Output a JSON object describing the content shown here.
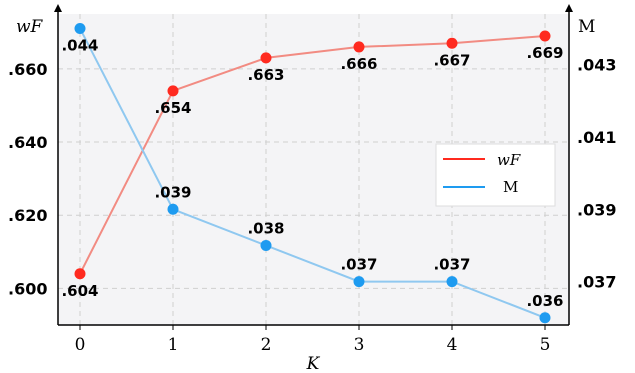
{
  "chart_data": {
    "type": "line",
    "xlabel": "K",
    "x": [
      0,
      1,
      2,
      3,
      4,
      5
    ],
    "x_tick_labels": [
      "0",
      "1",
      "2",
      "3",
      "4",
      "5"
    ],
    "left_axis": {
      "label": "wF",
      "ylim": [
        0.59,
        0.675
      ],
      "ticks": [
        0.6,
        0.62,
        0.64,
        0.66
      ],
      "tick_labels": [
        ".600",
        ".620",
        ".640",
        ".660"
      ]
    },
    "right_axis": {
      "label": "M",
      "ylim": [
        0.0358,
        0.0444
      ],
      "ticks": [
        0.037,
        0.039,
        0.041,
        0.043
      ],
      "tick_labels": [
        ".037",
        ".039",
        ".041",
        ".043"
      ]
    },
    "series": [
      {
        "name": "wF",
        "axis": "left",
        "color": "#f28b82",
        "marker_color": "#ff2a1f",
        "values": [
          0.604,
          0.654,
          0.663,
          0.666,
          0.667,
          0.669
        ],
        "labels": [
          ".604",
          ".654",
          ".663",
          ".666",
          ".667",
          ".669"
        ]
      },
      {
        "name": "M",
        "axis": "right",
        "color": "#8fc8f0",
        "marker_color": "#1e9bf0",
        "values": [
          0.044,
          0.039,
          0.038,
          0.037,
          0.037,
          0.036
        ],
        "labels": [
          ".044",
          ".039",
          ".038",
          ".037",
          ".037",
          ".036"
        ]
      }
    ],
    "grid": true,
    "legend": "center-right",
    "legend_entries": [
      "wF",
      "M"
    ]
  }
}
